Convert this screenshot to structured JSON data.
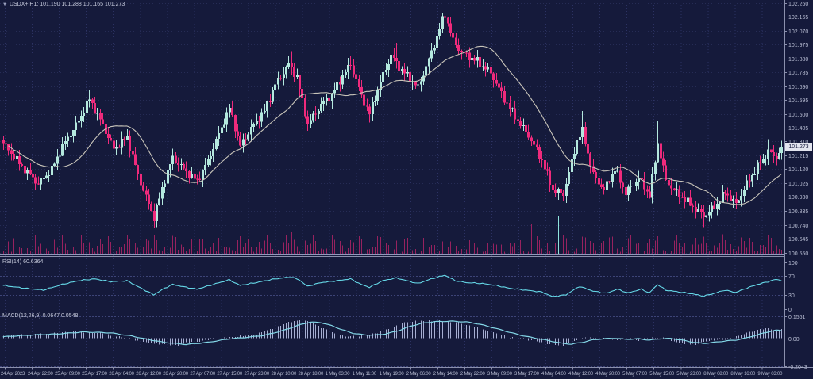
{
  "header": {
    "dropdown_icon": "▼",
    "title": "USDX+,H1: 101.190 101.288 101.165 101.273"
  },
  "colors": {
    "background": "#151a3b",
    "grid": "#2c3263",
    "grid_horizontal": "#262c55",
    "bull_candle": "#b4e8de",
    "bear_candle": "#ef2a7c",
    "ma_line": "#c9c5ba",
    "rsi_line": "#66d9e8",
    "macd_signal": "#84d8e8",
    "macd_histogram": "#a6aed2",
    "volume": "#97225f",
    "volume_spike": "#8fe4de",
    "axis_text": "#b9bed4",
    "separator": "#8b90ad",
    "price_line": "#ccd0e2",
    "level_line": "#3d4477",
    "price_tag_bg": "#e3e5ef",
    "price_tag_text": "#12163a"
  },
  "chart_data": [
    {
      "id": "price",
      "type": "candlestick",
      "symbol": "USDX+",
      "timeframe": "H1",
      "ohlc": {
        "open": "101.190",
        "high": "101.288",
        "low": "101.165",
        "close": "101.273"
      },
      "current_price": "101.273",
      "current_price_value": 101.273,
      "y_axis": {
        "min": 100.55,
        "max": 102.26,
        "labels": [
          "102.260",
          "102.165",
          "102.070",
          "101.975",
          "101.880",
          "101.785",
          "101.690",
          "101.595",
          "101.500",
          "101.405",
          "101.310",
          "101.215",
          "101.120",
          "101.025",
          "100.930",
          "100.835",
          "100.740",
          "100.645",
          "100.550"
        ]
      },
      "x_axis": {
        "labels": [
          "24 Apr 2023",
          "24 Apr 22:00",
          "25 Apr 09:00",
          "25 Apr 17:00",
          "26 Apr 04:00",
          "26 Apr 12:00",
          "26 Apr 20:00",
          "27 Apr 07:00",
          "27 Apr 15:00",
          "27 Apr 23:00",
          "28 Apr 10:00",
          "28 Apr 18:00",
          "1 May 03:00",
          "1 May 11:00",
          "1 May 19:00",
          "2 May 06:00",
          "2 May 14:00",
          "2 May 22:00",
          "3 May 09:00",
          "3 May 17:00",
          "4 May 04:00",
          "4 May 12:00",
          "4 May 20:00",
          "5 May 07:00",
          "5 May 15:00",
          "5 May 23:00",
          "8 May 08:00",
          "8 May 16:00",
          "9 May 03:00"
        ]
      },
      "candles": {
        "count": 290,
        "final_close": 101.273,
        "noise_amp": 0.03,
        "wick_amp": 0.05,
        "close_path": [
          [
            0,
            101.3
          ],
          [
            6,
            101.16
          ],
          [
            13,
            101.02
          ],
          [
            18,
            101.12
          ],
          [
            22,
            101.28
          ],
          [
            28,
            101.45
          ],
          [
            32,
            101.6
          ],
          [
            37,
            101.42
          ],
          [
            41,
            101.26
          ],
          [
            46,
            101.34
          ],
          [
            50,
            101.08
          ],
          [
            54,
            100.88
          ],
          [
            56,
            100.79
          ],
          [
            60,
            101.05
          ],
          [
            63,
            101.2
          ],
          [
            67,
            101.12
          ],
          [
            72,
            101.04
          ],
          [
            76,
            101.18
          ],
          [
            80,
            101.36
          ],
          [
            84,
            101.54
          ],
          [
            88,
            101.28
          ],
          [
            92,
            101.4
          ],
          [
            97,
            101.52
          ],
          [
            101,
            101.7
          ],
          [
            106,
            101.84
          ],
          [
            109,
            101.75
          ],
          [
            113,
            101.43
          ],
          [
            118,
            101.56
          ],
          [
            122,
            101.63
          ],
          [
            126,
            101.76
          ],
          [
            129,
            101.84
          ],
          [
            133,
            101.62
          ],
          [
            136,
            101.5
          ],
          [
            140,
            101.72
          ],
          [
            144,
            101.9
          ],
          [
            147,
            101.82
          ],
          [
            150,
            101.76
          ],
          [
            154,
            101.68
          ],
          [
            159,
            101.92
          ],
          [
            163,
            102.14
          ],
          [
            164,
            102.18
          ],
          [
            167,
            102.0
          ],
          [
            170,
            101.92
          ],
          [
            176,
            101.86
          ],
          [
            181,
            101.78
          ],
          [
            186,
            101.6
          ],
          [
            191,
            101.45
          ],
          [
            195,
            101.35
          ],
          [
            200,
            101.18
          ],
          [
            204,
            100.98
          ],
          [
            208,
            100.95
          ],
          [
            213,
            101.32
          ],
          [
            215,
            101.38
          ],
          [
            219,
            101.08
          ],
          [
            223,
            100.98
          ],
          [
            227,
            101.12
          ],
          [
            231,
            100.96
          ],
          [
            236,
            101.06
          ],
          [
            240,
            100.94
          ],
          [
            243,
            101.3
          ],
          [
            246,
            101.04
          ],
          [
            250,
            100.96
          ],
          [
            255,
            100.88
          ],
          [
            260,
            100.8
          ],
          [
            264,
            100.86
          ],
          [
            268,
            100.96
          ],
          [
            272,
            100.88
          ],
          [
            276,
            101.02
          ],
          [
            280,
            101.14
          ],
          [
            284,
            101.24
          ],
          [
            287,
            101.2
          ],
          [
            289,
            101.273
          ]
        ],
        "wick_overrides": [
          [
            32,
            "h",
            101.66
          ],
          [
            56,
            "l",
            100.715
          ],
          [
            107,
            "h",
            101.93
          ],
          [
            129,
            "h",
            101.9
          ],
          [
            136,
            "l",
            101.44
          ],
          [
            146,
            "h",
            101.985
          ],
          [
            164,
            "h",
            102.26
          ],
          [
            204,
            "l",
            100.85
          ],
          [
            215,
            "h",
            101.52
          ],
          [
            243,
            "h",
            101.45
          ],
          [
            260,
            "l",
            100.725
          ],
          [
            284,
            "h",
            101.325
          ]
        ]
      },
      "ma": {
        "period": 21
      },
      "volume": {
        "base": 3,
        "amp": 22,
        "spikes": [
          {
            "i": 56,
            "h": 24
          },
          {
            "i": 107,
            "h": 28
          },
          {
            "i": 196,
            "h": 38
          },
          {
            "i": 206,
            "h": 48,
            "cyan": true
          },
          {
            "i": 217,
            "h": 34
          }
        ]
      }
    },
    {
      "id": "rsi",
      "type": "line",
      "label": "RSI(14)",
      "value": "60.6364",
      "range": [
        0,
        100
      ],
      "levels": [
        70,
        30
      ],
      "axis_labels": [
        "100",
        "70",
        "30",
        "0"
      ],
      "points": [
        [
          0,
          50
        ],
        [
          8,
          44
        ],
        [
          15,
          40
        ],
        [
          22,
          52
        ],
        [
          28,
          60
        ],
        [
          34,
          64
        ],
        [
          40,
          58
        ],
        [
          46,
          60
        ],
        [
          52,
          42
        ],
        [
          56,
          30
        ],
        [
          60,
          44
        ],
        [
          63,
          52
        ],
        [
          68,
          46
        ],
        [
          72,
          42
        ],
        [
          78,
          52
        ],
        [
          84,
          62
        ],
        [
          88,
          50
        ],
        [
          94,
          56
        ],
        [
          101,
          64
        ],
        [
          107,
          68
        ],
        [
          110,
          62
        ],
        [
          113,
          48
        ],
        [
          118,
          56
        ],
        [
          124,
          60
        ],
        [
          129,
          64
        ],
        [
          133,
          52
        ],
        [
          136,
          46
        ],
        [
          141,
          60
        ],
        [
          146,
          66
        ],
        [
          150,
          60
        ],
        [
          154,
          54
        ],
        [
          159,
          64
        ],
        [
          164,
          72
        ],
        [
          168,
          60
        ],
        [
          172,
          56
        ],
        [
          178,
          54
        ],
        [
          183,
          50
        ],
        [
          188,
          44
        ],
        [
          194,
          40
        ],
        [
          200,
          36
        ],
        [
          204,
          26
        ],
        [
          209,
          30
        ],
        [
          214,
          48
        ],
        [
          219,
          38
        ],
        [
          224,
          33
        ],
        [
          228,
          42
        ],
        [
          232,
          34
        ],
        [
          237,
          42
        ],
        [
          240,
          34
        ],
        [
          243,
          52
        ],
        [
          246,
          40
        ],
        [
          251,
          36
        ],
        [
          256,
          32
        ],
        [
          260,
          27
        ],
        [
          264,
          33
        ],
        [
          268,
          40
        ],
        [
          272,
          35
        ],
        [
          276,
          44
        ],
        [
          280,
          52
        ],
        [
          284,
          58
        ],
        [
          287,
          63
        ],
        [
          289,
          60.64
        ]
      ]
    },
    {
      "id": "macd",
      "type": "line+histogram",
      "label": "MACD(12,26,9)",
      "value_main": "0.0647",
      "value_signal": "0.0548",
      "axis_labels": [
        "0.1561",
        "0.00",
        "-0.2043"
      ],
      "hist_lead": 2.2,
      "hist_end": 0.0647,
      "signal_path": [
        [
          0,
          0.01
        ],
        [
          10,
          0.022
        ],
        [
          20,
          0.03
        ],
        [
          30,
          0.045
        ],
        [
          40,
          0.038
        ],
        [
          48,
          0.015
        ],
        [
          54,
          -0.01
        ],
        [
          60,
          -0.03
        ],
        [
          68,
          -0.045
        ],
        [
          76,
          -0.03
        ],
        [
          84,
          -0.005
        ],
        [
          90,
          0.005
        ],
        [
          97,
          0.02
        ],
        [
          104,
          0.055
        ],
        [
          110,
          0.095
        ],
        [
          114,
          0.115
        ],
        [
          118,
          0.112
        ],
        [
          122,
          0.09
        ],
        [
          126,
          0.06
        ],
        [
          130,
          0.035
        ],
        [
          134,
          0.024
        ],
        [
          138,
          0.022
        ],
        [
          142,
          0.03
        ],
        [
          147,
          0.055
        ],
        [
          152,
          0.09
        ],
        [
          156,
          0.108
        ],
        [
          160,
          0.118
        ],
        [
          166,
          0.122
        ],
        [
          172,
          0.117
        ],
        [
          177,
          0.1
        ],
        [
          182,
          0.075
        ],
        [
          187,
          0.048
        ],
        [
          192,
          0.022
        ],
        [
          197,
          0.002
        ],
        [
          202,
          -0.015
        ],
        [
          207,
          -0.035
        ],
        [
          211,
          -0.043
        ],
        [
          215,
          -0.03
        ],
        [
          219,
          -0.012
        ],
        [
          223,
          -0.004
        ],
        [
          227,
          0.0
        ],
        [
          231,
          -0.008
        ],
        [
          236,
          -0.004
        ],
        [
          240,
          -0.014
        ],
        [
          244,
          -0.004
        ],
        [
          248,
          -0.002
        ],
        [
          252,
          -0.014
        ],
        [
          256,
          -0.028
        ],
        [
          260,
          -0.038
        ],
        [
          264,
          -0.03
        ],
        [
          268,
          -0.02
        ],
        [
          272,
          -0.014
        ],
        [
          276,
          0.002
        ],
        [
          280,
          0.024
        ],
        [
          284,
          0.045
        ],
        [
          287,
          0.057
        ],
        [
          289,
          0.0548
        ]
      ]
    }
  ]
}
